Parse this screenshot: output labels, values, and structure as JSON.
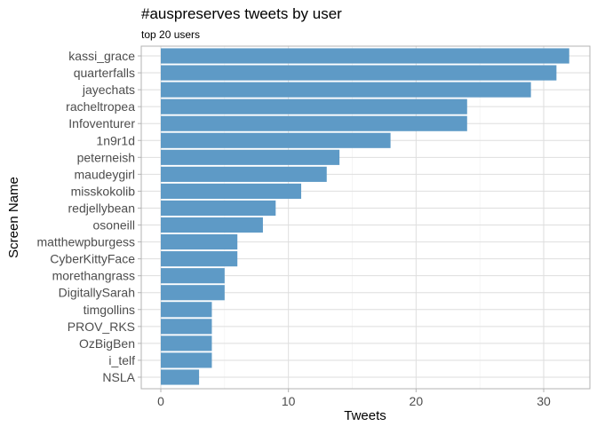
{
  "chart_data": {
    "type": "bar",
    "orientation": "horizontal",
    "title": "#auspreserves tweets by user",
    "subtitle": "top 20 users",
    "xlabel": "Tweets",
    "ylabel": "Screen Name",
    "xlim": [
      0,
      34
    ],
    "xticks": [
      0,
      10,
      20,
      30
    ],
    "grid": true,
    "bar_color": "#5e9ac6",
    "categories": [
      "kassi_grace",
      "quarterfalls",
      "jayechats",
      "racheltropea",
      "Infoventurer",
      "1n9r1d",
      "peterneish",
      "maudeygirl",
      "misskokolib",
      "redjellybean",
      "osoneill",
      "matthewpburgess",
      "CyberKittyFace",
      "morethangrass",
      "DigitallySarah",
      "timgollins",
      "PROV_RKS",
      "OzBigBen",
      "i_telf",
      "NSLA"
    ],
    "values": [
      32,
      31,
      29,
      24,
      24,
      18,
      14,
      13,
      11,
      9,
      8,
      6,
      6,
      5,
      5,
      4,
      4,
      4,
      4,
      3
    ]
  }
}
